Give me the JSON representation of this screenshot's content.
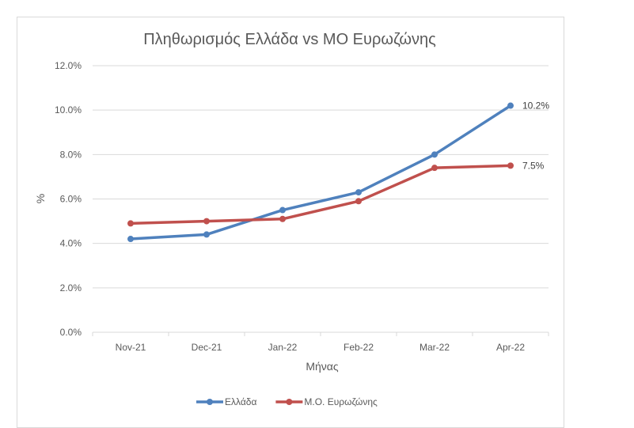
{
  "chart_data": {
    "type": "line",
    "title": "Πληθωρισμός Ελλάδα vs ΜΟ Ευρωζώνης",
    "xlabel": "Μήνας",
    "ylabel": "%",
    "categories": [
      "Nov-21",
      "Dec-21",
      "Jan-22",
      "Feb-22",
      "Mar-22",
      "Apr-22"
    ],
    "ylim": [
      0,
      12
    ],
    "yticks": [
      "0.0%",
      "2.0%",
      "4.0%",
      "6.0%",
      "8.0%",
      "10.0%",
      "12.0%"
    ],
    "grid": true,
    "legend": "bottom",
    "series": [
      {
        "name": "Ελλάδα",
        "color": "#4f81bd",
        "values": [
          4.2,
          4.4,
          5.5,
          6.3,
          8.0,
          10.2
        ],
        "last_label": "10.2%"
      },
      {
        "name": "Μ.Ο. Ευρωζώνης",
        "color": "#c0504d",
        "values": [
          4.9,
          5.0,
          5.1,
          5.9,
          7.4,
          7.5
        ],
        "last_label": "7.5%"
      }
    ]
  }
}
